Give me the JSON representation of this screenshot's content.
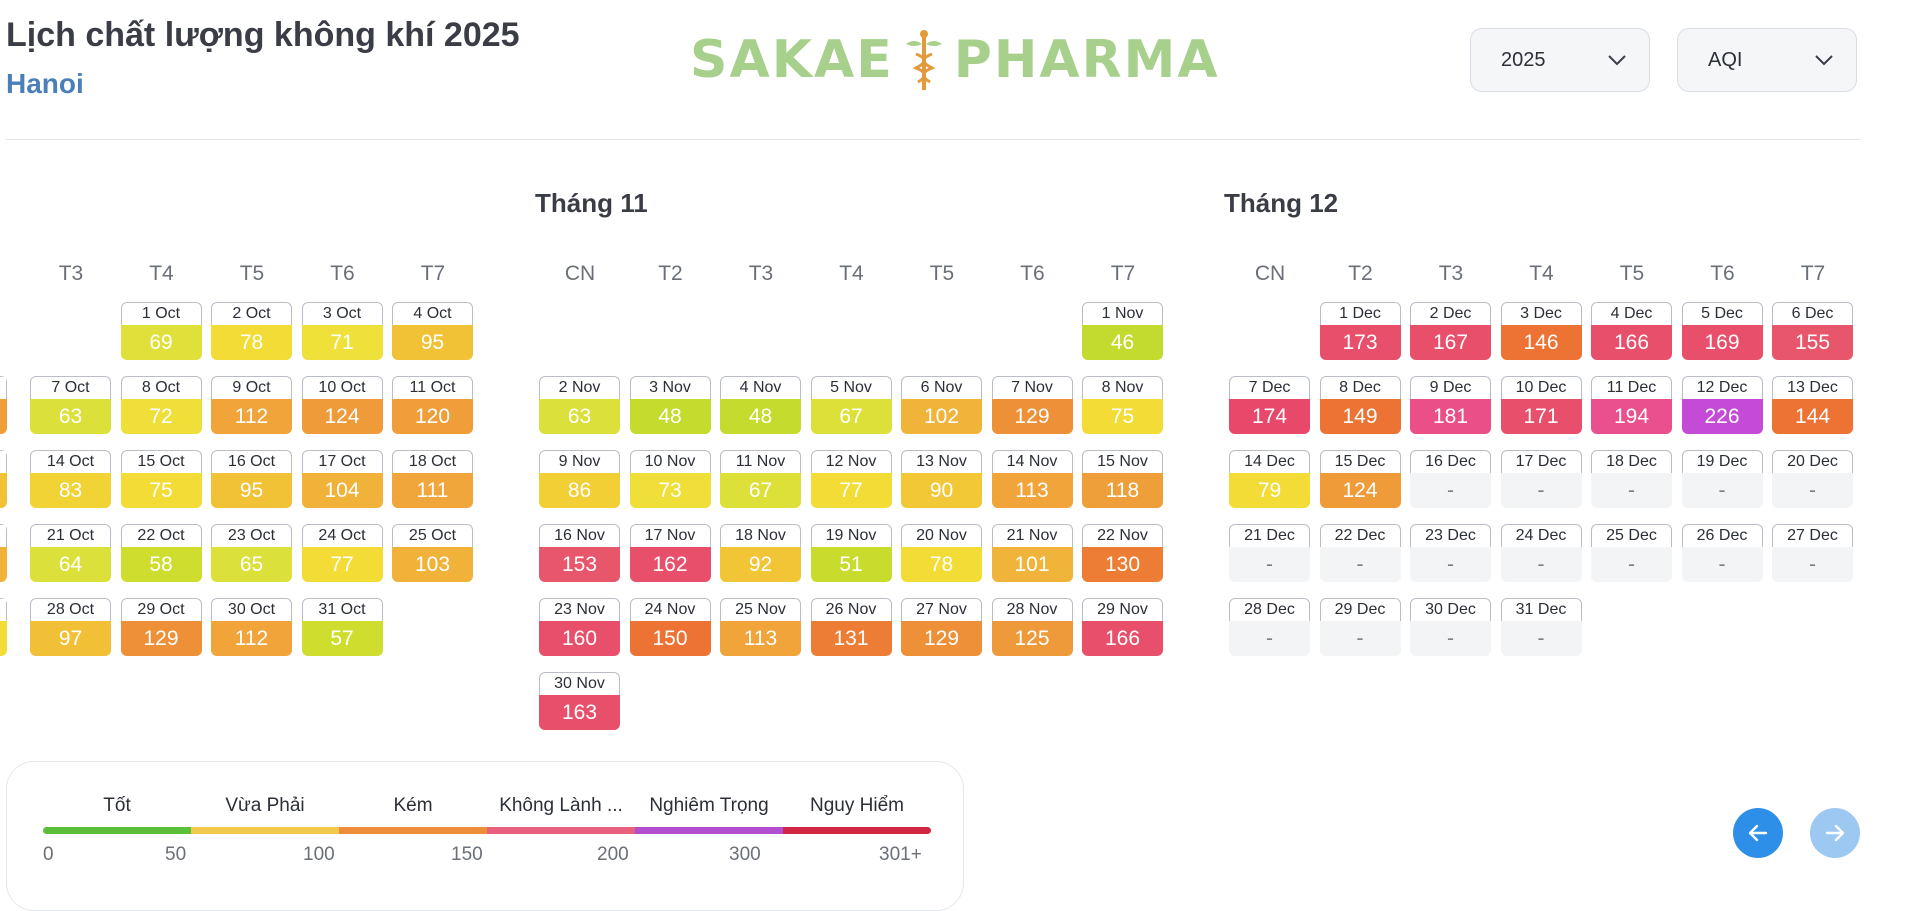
{
  "header": {
    "title": "Lịch chất lượng không khí 2025",
    "city": "Hanoi",
    "logo_left": "SAKAE",
    "logo_right": "PHARMA"
  },
  "filters": {
    "year": {
      "value": "2025",
      "icon": "chevron-down-icon"
    },
    "metric": {
      "value": "AQI",
      "icon": "chevron-down-icon"
    }
  },
  "colors": {
    "good": "#c8dc2a",
    "moderate": "#f2dc35",
    "yellow_orange": "#f2c236",
    "orange": "#f0a43a",
    "dark_orange": "#ed7d34",
    "red": "#e84f6a",
    "pink": "#ea4f88",
    "purple": "#c34bd5",
    "legend": [
      "#5bbf3a",
      "#f2c94c",
      "#ee8d3a",
      "#e9607e",
      "#b24fd0",
      "#d12642"
    ]
  },
  "months": [
    {
      "id": "oct",
      "title": "",
      "weekdays": [
        "T3",
        "T4",
        "T5",
        "T6",
        "T7"
      ],
      "cells": [
        {
          "row": 0,
          "col": 1,
          "date": "1 Oct",
          "value": "69",
          "color": "#dfe03a"
        },
        {
          "row": 0,
          "col": 2,
          "date": "2 Oct",
          "value": "78",
          "color": "#f2dc35"
        },
        {
          "row": 0,
          "col": 3,
          "date": "3 Oct",
          "value": "71",
          "color": "#efe03a"
        },
        {
          "row": 0,
          "col": 4,
          "date": "4 Oct",
          "value": "95",
          "color": "#f2c236"
        },
        {
          "row": 1,
          "col": 0,
          "date": "7 Oct",
          "value": "63",
          "color": "#dbe03a"
        },
        {
          "row": 1,
          "col": 1,
          "date": "8 Oct",
          "value": "72",
          "color": "#efdf38"
        },
        {
          "row": 1,
          "col": 2,
          "date": "9 Oct",
          "value": "112",
          "color": "#f0a43a"
        },
        {
          "row": 1,
          "col": 3,
          "date": "10 Oct",
          "value": "124",
          "color": "#ef9b3a"
        },
        {
          "row": 1,
          "col": 4,
          "date": "11 Oct",
          "value": "120",
          "color": "#ef9e3a"
        },
        {
          "row": 2,
          "col": 0,
          "date": "14 Oct",
          "value": "83",
          "color": "#f2d335"
        },
        {
          "row": 2,
          "col": 1,
          "date": "15 Oct",
          "value": "75",
          "color": "#f2dc35"
        },
        {
          "row": 2,
          "col": 2,
          "date": "16 Oct",
          "value": "95",
          "color": "#f2c236"
        },
        {
          "row": 2,
          "col": 3,
          "date": "17 Oct",
          "value": "104",
          "color": "#f1b23a"
        },
        {
          "row": 2,
          "col": 4,
          "date": "18 Oct",
          "value": "111",
          "color": "#f0a63a"
        },
        {
          "row": 3,
          "col": 0,
          "date": "21 Oct",
          "value": "64",
          "color": "#dbe03a"
        },
        {
          "row": 3,
          "col": 1,
          "date": "22 Oct",
          "value": "58",
          "color": "#cfdd2e"
        },
        {
          "row": 3,
          "col": 2,
          "date": "23 Oct",
          "value": "65",
          "color": "#dce03a"
        },
        {
          "row": 3,
          "col": 3,
          "date": "24 Oct",
          "value": "77",
          "color": "#f2dc35"
        },
        {
          "row": 3,
          "col": 4,
          "date": "25 Oct",
          "value": "103",
          "color": "#f1b23a"
        },
        {
          "row": 4,
          "col": 0,
          "date": "28 Oct",
          "value": "97",
          "color": "#f2c036"
        },
        {
          "row": 4,
          "col": 1,
          "date": "29 Oct",
          "value": "129",
          "color": "#ee9038"
        },
        {
          "row": 4,
          "col": 2,
          "date": "30 Oct",
          "value": "112",
          "color": "#f0a43a"
        },
        {
          "row": 4,
          "col": 3,
          "date": "31 Oct",
          "value": "57",
          "color": "#cedd2e"
        }
      ],
      "partial": [
        {
          "row": 1,
          "color": "#ef9e3a"
        },
        {
          "row": 2,
          "color": "#f2c236"
        },
        {
          "row": 3,
          "color": "#f1b23a"
        },
        {
          "row": 4,
          "color": "#f2dc35"
        }
      ]
    },
    {
      "id": "nov",
      "title": "Tháng 11",
      "weekdays": [
        "CN",
        "T2",
        "T3",
        "T4",
        "T5",
        "T6",
        "T7"
      ],
      "cells": [
        {
          "row": 0,
          "col": 6,
          "date": "1 Nov",
          "value": "46",
          "color": "#c3db2e"
        },
        {
          "row": 1,
          "col": 0,
          "date": "2 Nov",
          "value": "63",
          "color": "#dbe03a"
        },
        {
          "row": 1,
          "col": 1,
          "date": "3 Nov",
          "value": "48",
          "color": "#c5db2e"
        },
        {
          "row": 1,
          "col": 2,
          "date": "4 Nov",
          "value": "48",
          "color": "#c5db2e"
        },
        {
          "row": 1,
          "col": 3,
          "date": "5 Nov",
          "value": "67",
          "color": "#dee03a"
        },
        {
          "row": 1,
          "col": 4,
          "date": "6 Nov",
          "value": "102",
          "color": "#f1b43a"
        },
        {
          "row": 1,
          "col": 5,
          "date": "7 Nov",
          "value": "129",
          "color": "#ee9038"
        },
        {
          "row": 1,
          "col": 6,
          "date": "8 Nov",
          "value": "75",
          "color": "#f2dc35"
        },
        {
          "row": 2,
          "col": 0,
          "date": "9 Nov",
          "value": "86",
          "color": "#f2cf35"
        },
        {
          "row": 2,
          "col": 1,
          "date": "10 Nov",
          "value": "73",
          "color": "#efdf38"
        },
        {
          "row": 2,
          "col": 2,
          "date": "11 Nov",
          "value": "67",
          "color": "#dee03a"
        },
        {
          "row": 2,
          "col": 3,
          "date": "12 Nov",
          "value": "77",
          "color": "#f2dc35"
        },
        {
          "row": 2,
          "col": 4,
          "date": "13 Nov",
          "value": "90",
          "color": "#f2c836"
        },
        {
          "row": 2,
          "col": 5,
          "date": "14 Nov",
          "value": "113",
          "color": "#f0a43a"
        },
        {
          "row": 2,
          "col": 6,
          "date": "15 Nov",
          "value": "118",
          "color": "#ef9f3a"
        },
        {
          "row": 3,
          "col": 0,
          "date": "16 Nov",
          "value": "153",
          "color": "#e8566b"
        },
        {
          "row": 3,
          "col": 1,
          "date": "17 Nov",
          "value": "162",
          "color": "#e84f6a"
        },
        {
          "row": 3,
          "col": 2,
          "date": "18 Nov",
          "value": "92",
          "color": "#f2c536"
        },
        {
          "row": 3,
          "col": 3,
          "date": "19 Nov",
          "value": "51",
          "color": "#c8dc2e"
        },
        {
          "row": 3,
          "col": 4,
          "date": "20 Nov",
          "value": "78",
          "color": "#f2dc35"
        },
        {
          "row": 3,
          "col": 5,
          "date": "21 Nov",
          "value": "101",
          "color": "#f1b43a"
        },
        {
          "row": 3,
          "col": 6,
          "date": "22 Nov",
          "value": "130",
          "color": "#ed7d34"
        },
        {
          "row": 4,
          "col": 0,
          "date": "23 Nov",
          "value": "160",
          "color": "#e84f6a"
        },
        {
          "row": 4,
          "col": 1,
          "date": "24 Nov",
          "value": "150",
          "color": "#ed7334"
        },
        {
          "row": 4,
          "col": 2,
          "date": "25 Nov",
          "value": "113",
          "color": "#f0a43a"
        },
        {
          "row": 4,
          "col": 3,
          "date": "26 Nov",
          "value": "131",
          "color": "#ed7d34"
        },
        {
          "row": 4,
          "col": 4,
          "date": "27 Nov",
          "value": "129",
          "color": "#ee9038"
        },
        {
          "row": 4,
          "col": 5,
          "date": "28 Nov",
          "value": "125",
          "color": "#ef9a3a"
        },
        {
          "row": 4,
          "col": 6,
          "date": "29 Nov",
          "value": "166",
          "color": "#e84f6a"
        },
        {
          "row": 5,
          "col": 0,
          "date": "30 Nov",
          "value": "163",
          "color": "#e84f6a"
        }
      ]
    },
    {
      "id": "dec",
      "title": "Tháng 12",
      "weekdays": [
        "CN",
        "T2",
        "T3",
        "T4",
        "T5",
        "T6",
        "T7"
      ],
      "cells": [
        {
          "row": 0,
          "col": 1,
          "date": "1 Dec",
          "value": "173",
          "color": "#e84f6a"
        },
        {
          "row": 0,
          "col": 2,
          "date": "2 Dec",
          "value": "167",
          "color": "#e84f6a"
        },
        {
          "row": 0,
          "col": 3,
          "date": "3 Dec",
          "value": "146",
          "color": "#ed7334"
        },
        {
          "row": 0,
          "col": 4,
          "date": "4 Dec",
          "value": "166",
          "color": "#e84f6a"
        },
        {
          "row": 0,
          "col": 5,
          "date": "5 Dec",
          "value": "169",
          "color": "#e84f6a"
        },
        {
          "row": 0,
          "col": 6,
          "date": "6 Dec",
          "value": "155",
          "color": "#e8566b"
        },
        {
          "row": 1,
          "col": 0,
          "date": "7 Dec",
          "value": "174",
          "color": "#e8486a"
        },
        {
          "row": 1,
          "col": 1,
          "date": "8 Dec",
          "value": "149",
          "color": "#ed7334"
        },
        {
          "row": 1,
          "col": 2,
          "date": "9 Dec",
          "value": "181",
          "color": "#ea4f88"
        },
        {
          "row": 1,
          "col": 3,
          "date": "10 Dec",
          "value": "171",
          "color": "#e84f6a"
        },
        {
          "row": 1,
          "col": 4,
          "date": "11 Dec",
          "value": "194",
          "color": "#ea4f8e"
        },
        {
          "row": 1,
          "col": 5,
          "date": "12 Dec",
          "value": "226",
          "color": "#c34bd5"
        },
        {
          "row": 1,
          "col": 6,
          "date": "13 Dec",
          "value": "144",
          "color": "#ed7334"
        },
        {
          "row": 2,
          "col": 0,
          "date": "14 Dec",
          "value": "79",
          "color": "#f2dc35"
        },
        {
          "row": 2,
          "col": 1,
          "date": "15 Dec",
          "value": "124",
          "color": "#ef9b3a"
        },
        {
          "row": 2,
          "col": 2,
          "date": "16 Dec",
          "value": "-",
          "color": ""
        },
        {
          "row": 2,
          "col": 3,
          "date": "17 Dec",
          "value": "-",
          "color": ""
        },
        {
          "row": 2,
          "col": 4,
          "date": "18 Dec",
          "value": "-",
          "color": ""
        },
        {
          "row": 2,
          "col": 5,
          "date": "19 Dec",
          "value": "-",
          "color": ""
        },
        {
          "row": 2,
          "col": 6,
          "date": "20 Dec",
          "value": "-",
          "color": ""
        },
        {
          "row": 3,
          "col": 0,
          "date": "21 Dec",
          "value": "-",
          "color": ""
        },
        {
          "row": 3,
          "col": 1,
          "date": "22 Dec",
          "value": "-",
          "color": ""
        },
        {
          "row": 3,
          "col": 2,
          "date": "23 Dec",
          "value": "-",
          "color": ""
        },
        {
          "row": 3,
          "col": 3,
          "date": "24 Dec",
          "value": "-",
          "color": ""
        },
        {
          "row": 3,
          "col": 4,
          "date": "25 Dec",
          "value": "-",
          "color": ""
        },
        {
          "row": 3,
          "col": 5,
          "date": "26 Dec",
          "value": "-",
          "color": ""
        },
        {
          "row": 3,
          "col": 6,
          "date": "27 Dec",
          "value": "-",
          "color": ""
        },
        {
          "row": 4,
          "col": 0,
          "date": "28 Dec",
          "value": "-",
          "color": ""
        },
        {
          "row": 4,
          "col": 1,
          "date": "29 Dec",
          "value": "-",
          "color": ""
        },
        {
          "row": 4,
          "col": 2,
          "date": "30 Dec",
          "value": "-",
          "color": ""
        },
        {
          "row": 4,
          "col": 3,
          "date": "31 Dec",
          "value": "-",
          "color": ""
        }
      ]
    }
  ],
  "legend": {
    "labels": [
      "Tốt",
      "Vừa Phải",
      "Kém",
      "Không Lành ...",
      "Nghiêm Trọng",
      "Nguy Hiểm"
    ],
    "ticks": [
      "0",
      "50",
      "100",
      "150",
      "200",
      "300",
      "301+"
    ]
  },
  "nav": {
    "prev_icon": "arrow-left-icon",
    "next_icon": "arrow-right-icon",
    "prev_color": "#2e8fe8",
    "next_color": "#9cc8f2"
  }
}
